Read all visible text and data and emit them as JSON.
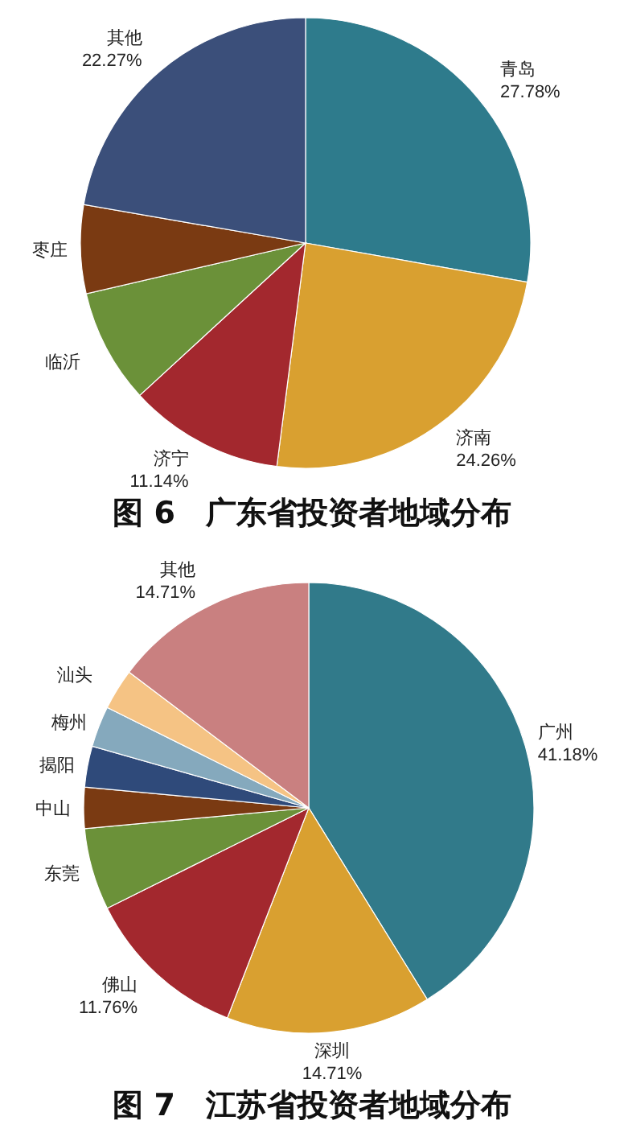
{
  "chart_data": [
    {
      "type": "pie",
      "title": "图 6　广东省投资者地域分布",
      "categories": [
        "青岛",
        "济南",
        "济宁",
        "临沂",
        "枣庄",
        "其他"
      ],
      "values": [
        27.78,
        24.26,
        11.14,
        8.2,
        6.35,
        22.27
      ],
      "value_labels": [
        "27.78%",
        "24.26%",
        "11.14%",
        null,
        null,
        "22.27%"
      ],
      "colors": [
        "#2e7b8c",
        "#d9a030",
        "#a3282e",
        "#6b9139",
        "#7a3a12",
        "#3b4f7a"
      ]
    },
    {
      "type": "pie",
      "title": "图 7　江苏省投资者地域分布",
      "categories": [
        "广州",
        "深圳",
        "佛山",
        "东莞",
        "中山",
        "揭阳",
        "梅州",
        "汕头",
        "其他"
      ],
      "values": [
        41.18,
        14.71,
        11.76,
        5.88,
        2.94,
        2.94,
        2.94,
        2.94,
        14.71
      ],
      "value_labels": [
        "41.18%",
        "14.71%",
        "11.76%",
        null,
        null,
        null,
        null,
        null,
        "14.71%"
      ],
      "colors": [
        "#317a8a",
        "#d9a030",
        "#a3282e",
        "#6b9139",
        "#7a3a12",
        "#2f4a7a",
        "#85a9bd",
        "#f5c384",
        "#c98080"
      ]
    }
  ]
}
